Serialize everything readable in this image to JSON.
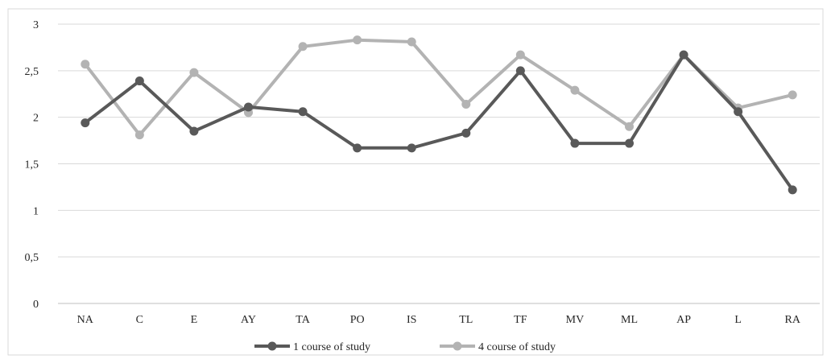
{
  "chart_data": {
    "type": "line",
    "title": "",
    "xlabel": "",
    "ylabel": "",
    "categories": [
      "NA",
      "C",
      "E",
      "AY",
      "TA",
      "PO",
      "IS",
      "TL",
      "TF",
      "MV",
      "ML",
      "AP",
      "L",
      "RA"
    ],
    "ylim": [
      0,
      3
    ],
    "yticks": [
      "0",
      "0,5",
      "1",
      "1,5",
      "2",
      "2,5",
      "3"
    ],
    "grid": "horizontal",
    "legend_position": "bottom-center",
    "series": [
      {
        "name": "1 course of study",
        "color": "#595959",
        "values": [
          1.94,
          2.39,
          1.85,
          2.11,
          2.06,
          1.67,
          1.67,
          1.83,
          2.5,
          1.72,
          1.72,
          2.67,
          2.06,
          1.22
        ]
      },
      {
        "name": "4 course of study",
        "color": "#b3b3b3",
        "values": [
          2.57,
          1.81,
          2.48,
          2.05,
          2.76,
          2.83,
          2.81,
          2.14,
          2.67,
          2.29,
          1.9,
          2.67,
          2.1,
          2.24
        ]
      }
    ]
  }
}
